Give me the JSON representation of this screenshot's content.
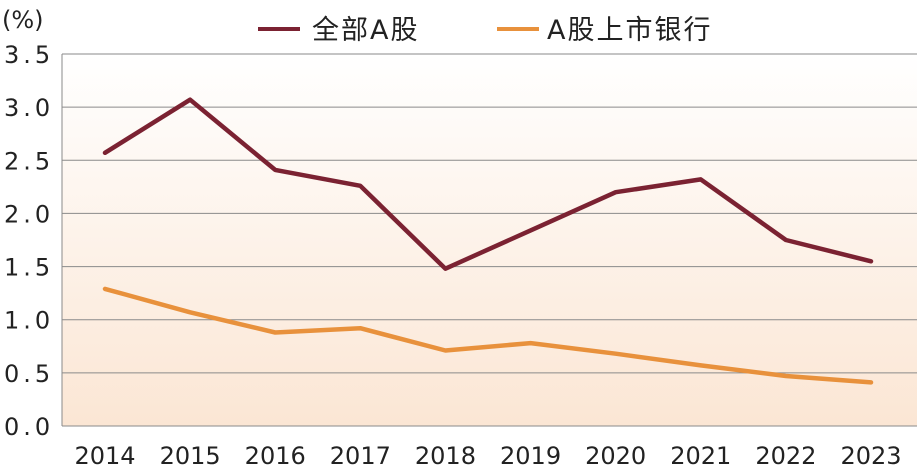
{
  "chart_data": {
    "type": "line",
    "unit_label": "(%)",
    "categories": [
      "2014",
      "2015",
      "2016",
      "2017",
      "2018",
      "2019",
      "2020",
      "2021",
      "2022",
      "2023"
    ],
    "ylim": [
      0,
      3.5
    ],
    "yticks": [
      "0.0",
      "0.5",
      "1.0",
      "1.5",
      "2.0",
      "2.5",
      "3.0",
      "3.5"
    ],
    "grid": true,
    "legend_position": "top",
    "series": [
      {
        "name": "全部A股",
        "color": "#7b2232",
        "values": [
          2.57,
          3.07,
          2.41,
          2.26,
          1.48,
          1.84,
          2.2,
          2.32,
          1.75,
          1.55
        ]
      },
      {
        "name": "A股上市银行",
        "color": "#e8913c",
        "values": [
          1.29,
          1.07,
          0.88,
          0.92,
          0.71,
          0.78,
          0.68,
          0.57,
          0.47,
          0.41
        ]
      }
    ],
    "background_gradient": [
      "#ffffff",
      "#fbe6d4"
    ],
    "grid_color": "#8a8a8a"
  }
}
